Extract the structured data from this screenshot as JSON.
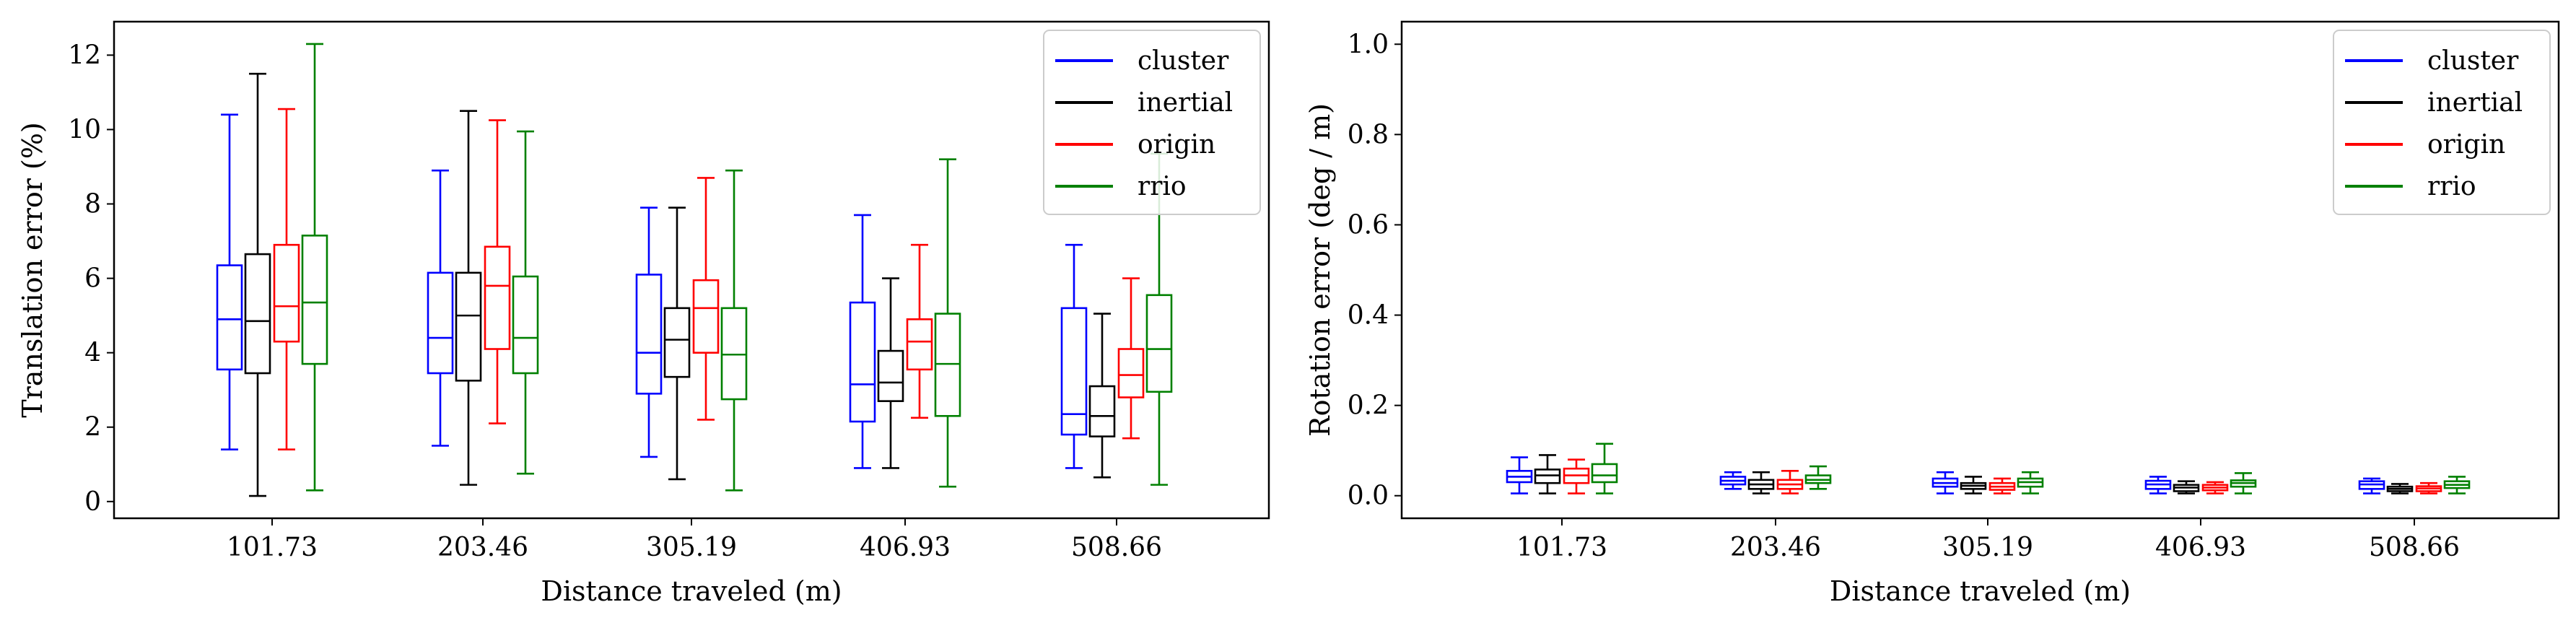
{
  "chart_data": [
    {
      "type": "boxplot",
      "xlabel": "Distance traveled (m)",
      "ylabel": "Translation error (%)",
      "ylim": [
        -0.45,
        12.9
      ],
      "yticks": [
        0,
        2,
        4,
        6,
        8,
        10,
        12
      ],
      "categories": [
        "101.73",
        "203.46",
        "305.19",
        "406.93",
        "508.66"
      ],
      "legend": {
        "placement": "top-right",
        "entries": [
          "cluster",
          "inertial",
          "origin",
          "rrio"
        ]
      },
      "series": [
        {
          "name": "cluster",
          "color": "#0000ff",
          "boxes": [
            {
              "min": 1.4,
              "q1": 3.55,
              "median": 4.9,
              "q3": 6.35,
              "max": 10.4
            },
            {
              "min": 1.5,
              "q1": 3.45,
              "median": 4.4,
              "q3": 6.15,
              "max": 8.9
            },
            {
              "min": 1.2,
              "q1": 2.9,
              "median": 4.0,
              "q3": 6.1,
              "max": 7.9
            },
            {
              "min": 0.9,
              "q1": 2.15,
              "median": 3.15,
              "q3": 5.35,
              "max": 7.7
            },
            {
              "min": 0.9,
              "q1": 1.8,
              "median": 2.35,
              "q3": 5.2,
              "max": 6.9
            }
          ]
        },
        {
          "name": "inertial",
          "color": "#000000",
          "boxes": [
            {
              "min": 0.15,
              "q1": 3.45,
              "median": 4.85,
              "q3": 6.65,
              "max": 11.5
            },
            {
              "min": 0.45,
              "q1": 3.25,
              "median": 5.0,
              "q3": 6.15,
              "max": 10.5
            },
            {
              "min": 0.6,
              "q1": 3.35,
              "median": 4.35,
              "q3": 5.2,
              "max": 7.9
            },
            {
              "min": 0.9,
              "q1": 2.7,
              "median": 3.2,
              "q3": 4.05,
              "max": 6.0
            },
            {
              "min": 0.65,
              "q1": 1.75,
              "median": 2.3,
              "q3": 3.1,
              "max": 5.05
            }
          ]
        },
        {
          "name": "origin",
          "color": "#ff0000",
          "boxes": [
            {
              "min": 1.4,
              "q1": 4.3,
              "median": 5.25,
              "q3": 6.9,
              "max": 10.55
            },
            {
              "min": 2.1,
              "q1": 4.1,
              "median": 5.8,
              "q3": 6.85,
              "max": 10.25
            },
            {
              "min": 2.2,
              "q1": 4.0,
              "median": 5.2,
              "q3": 5.95,
              "max": 8.7
            },
            {
              "min": 2.25,
              "q1": 3.55,
              "median": 4.3,
              "q3": 4.9,
              "max": 6.9
            },
            {
              "min": 1.7,
              "q1": 2.8,
              "median": 3.4,
              "q3": 4.1,
              "max": 6.0
            }
          ]
        },
        {
          "name": "rrio",
          "color": "#008000",
          "boxes": [
            {
              "min": 0.3,
              "q1": 3.7,
              "median": 5.35,
              "q3": 7.15,
              "max": 12.3
            },
            {
              "min": 0.75,
              "q1": 3.45,
              "median": 4.4,
              "q3": 6.05,
              "max": 9.95
            },
            {
              "min": 0.3,
              "q1": 2.75,
              "median": 3.95,
              "q3": 5.2,
              "max": 8.9
            },
            {
              "min": 0.4,
              "q1": 2.3,
              "median": 3.7,
              "q3": 5.05,
              "max": 9.2
            },
            {
              "min": 0.45,
              "q1": 2.95,
              "median": 4.1,
              "q3": 5.55,
              "max": 9.35
            }
          ]
        }
      ]
    },
    {
      "type": "boxplot",
      "xlabel": "Distance traveled (m)",
      "ylabel": "Rotation error (deg / m)",
      "ylim": [
        -0.05,
        1.05
      ],
      "yticks": [
        "0.0",
        "0.2",
        "0.4",
        "0.6",
        "0.8",
        "1.0"
      ],
      "categories": [
        "101.73",
        "203.46",
        "305.19",
        "406.93",
        "508.66"
      ],
      "legend": {
        "placement": "top-right",
        "entries": [
          "cluster",
          "inertial",
          "origin",
          "rrio"
        ]
      },
      "series": [
        {
          "name": "cluster",
          "color": "#0000ff",
          "boxes": [
            {
              "min": 0.005,
              "q1": 0.03,
              "median": 0.042,
              "q3": 0.055,
              "max": 0.085
            },
            {
              "min": 0.015,
              "q1": 0.025,
              "median": 0.033,
              "q3": 0.042,
              "max": 0.052
            },
            {
              "min": 0.005,
              "q1": 0.02,
              "median": 0.028,
              "q3": 0.038,
              "max": 0.052
            },
            {
              "min": 0.005,
              "q1": 0.015,
              "median": 0.025,
              "q3": 0.033,
              "max": 0.042
            },
            {
              "min": 0.005,
              "q1": 0.015,
              "median": 0.025,
              "q3": 0.032,
              "max": 0.038
            }
          ]
        },
        {
          "name": "inertial",
          "color": "#000000",
          "boxes": [
            {
              "min": 0.005,
              "q1": 0.028,
              "median": 0.045,
              "q3": 0.058,
              "max": 0.09
            },
            {
              "min": 0.005,
              "q1": 0.015,
              "median": 0.025,
              "q3": 0.035,
              "max": 0.052
            },
            {
              "min": 0.005,
              "q1": 0.015,
              "median": 0.022,
              "q3": 0.028,
              "max": 0.042
            },
            {
              "min": 0.005,
              "q1": 0.01,
              "median": 0.018,
              "q3": 0.024,
              "max": 0.032
            },
            {
              "min": 0.005,
              "q1": 0.01,
              "median": 0.015,
              "q3": 0.02,
              "max": 0.026
            }
          ]
        },
        {
          "name": "origin",
          "color": "#ff0000",
          "boxes": [
            {
              "min": 0.005,
              "q1": 0.028,
              "median": 0.045,
              "q3": 0.06,
              "max": 0.08
            },
            {
              "min": 0.005,
              "q1": 0.015,
              "median": 0.025,
              "q3": 0.035,
              "max": 0.055
            },
            {
              "min": 0.005,
              "q1": 0.013,
              "median": 0.02,
              "q3": 0.028,
              "max": 0.038
            },
            {
              "min": 0.005,
              "q1": 0.012,
              "median": 0.018,
              "q3": 0.024,
              "max": 0.03
            },
            {
              "min": 0.005,
              "q1": 0.01,
              "median": 0.016,
              "q3": 0.021,
              "max": 0.028
            }
          ]
        },
        {
          "name": "rrio",
          "color": "#008000",
          "boxes": [
            {
              "min": 0.005,
              "q1": 0.03,
              "median": 0.045,
              "q3": 0.07,
              "max": 0.115
            },
            {
              "min": 0.015,
              "q1": 0.028,
              "median": 0.035,
              "q3": 0.045,
              "max": 0.065
            },
            {
              "min": 0.005,
              "q1": 0.02,
              "median": 0.03,
              "q3": 0.038,
              "max": 0.052
            },
            {
              "min": 0.005,
              "q1": 0.02,
              "median": 0.028,
              "q3": 0.034,
              "max": 0.05
            },
            {
              "min": 0.005,
              "q1": 0.017,
              "median": 0.024,
              "q3": 0.032,
              "max": 0.042
            }
          ]
        }
      ]
    }
  ]
}
